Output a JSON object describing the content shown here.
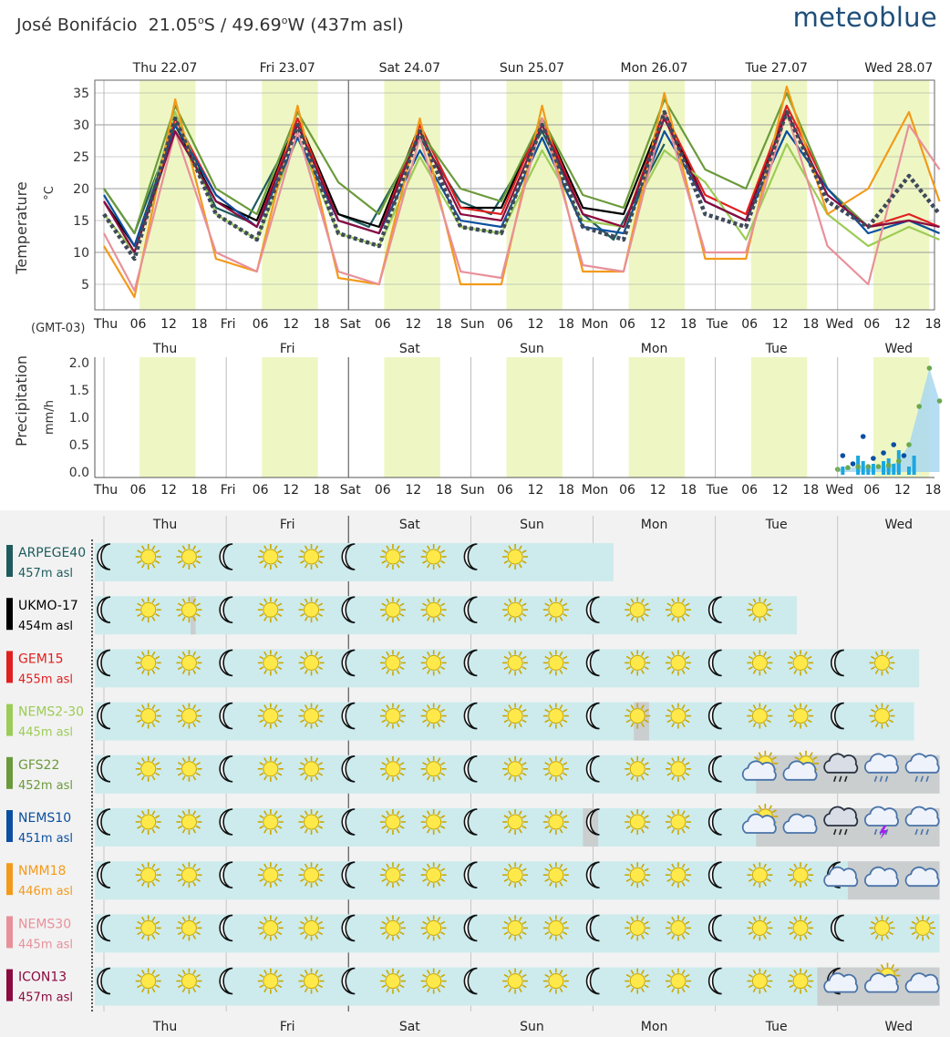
{
  "header": {
    "location": "José Bonifácio",
    "lat": "21.05",
    "lat_dir": "S",
    "lon": "49.69",
    "lon_dir": "W",
    "elevation": "(437m asl)",
    "brand": "meteoblue"
  },
  "timezone_label": "(GMT-03)",
  "day_dates": [
    "Thu 22.07",
    "Fri 23.07",
    "Sat 24.07",
    "Sun 25.07",
    "Mon 26.07",
    "Tue 27.07",
    "Wed 28.07"
  ],
  "day_names": [
    "Thu",
    "Fri",
    "Sat",
    "Sun",
    "Mon",
    "Tue",
    "Wed"
  ],
  "hour_ticks": [
    "06",
    "12",
    "18"
  ],
  "colors": {
    "ARPEGE40": "#1d5b5e",
    "UKMO-17": "#000000",
    "GEM15": "#e02020",
    "NEMS2-30": "#9ccc55",
    "GFS22": "#6a9a3a",
    "NEMS10": "#0b4fa0",
    "NMM18": "#f39a1a",
    "NEMS30": "#e8909a",
    "ICON13": "#8b0a40",
    "mean": "#3f4a5a",
    "daylight": "#eef7c4",
    "cyan_bar": "#cdebed",
    "precip_area": "#a9d8f0"
  },
  "chart_data": [
    {
      "type": "line",
      "title": "Temperature",
      "ylabel": "Temperature",
      "yunit": "°C",
      "ylim": [
        1,
        37
      ],
      "yticks": [
        5,
        10,
        15,
        20,
        25,
        30,
        35
      ],
      "x_unit": "hours from Thu 00:00 (local)",
      "xlim": [
        0,
        164
      ],
      "grid": true,
      "series": [
        {
          "name": "ARPEGE40",
          "x": [
            0,
            6,
            14,
            22,
            28,
            38,
            46,
            52,
            62,
            70,
            76,
            86,
            94,
            100,
            110
          ],
          "y": [
            20,
            13,
            30,
            17,
            15,
            30,
            16,
            14,
            28,
            18,
            16,
            29,
            16,
            12,
            27
          ]
        },
        {
          "name": "UKMO-17",
          "x": [
            0,
            6,
            14,
            22,
            30,
            38,
            46,
            54,
            62,
            70,
            78,
            86,
            94,
            102,
            110,
            118,
            126,
            134
          ],
          "y": [
            18,
            11,
            30,
            18,
            15,
            31,
            16,
            14,
            30,
            17,
            17,
            31,
            17,
            16,
            32,
            18,
            15,
            33
          ]
        },
        {
          "name": "GEM15",
          "x": [
            0,
            6,
            14,
            22,
            30,
            38,
            46,
            54,
            62,
            70,
            78,
            86,
            94,
            102,
            110,
            118,
            126,
            134,
            142,
            150,
            158,
            164
          ],
          "y": [
            18,
            10,
            31,
            19,
            14,
            31,
            15,
            13,
            30,
            17,
            16,
            31,
            16,
            14,
            32,
            19,
            16,
            33,
            20,
            14,
            16,
            14
          ]
        },
        {
          "name": "NEMS2-30",
          "x": [
            0,
            6,
            14,
            22,
            30,
            38,
            46,
            54,
            62,
            70,
            78,
            86,
            94,
            102,
            110,
            118,
            126,
            134,
            142,
            150,
            158,
            164
          ],
          "y": [
            16,
            10,
            32,
            16,
            12,
            28,
            13,
            11,
            25,
            14,
            13,
            26,
            15,
            14,
            26,
            21,
            12,
            27,
            16,
            11,
            14,
            12
          ]
        },
        {
          "name": "GFS22",
          "x": [
            0,
            6,
            14,
            22,
            30,
            38,
            46,
            54,
            62,
            70,
            78,
            86,
            94,
            102,
            110,
            118,
            126,
            134,
            142,
            150,
            158,
            164
          ],
          "y": [
            20,
            13,
            33,
            20,
            16,
            32,
            21,
            16,
            29,
            20,
            18,
            31,
            19,
            17,
            34,
            23,
            20,
            35,
            20,
            14,
            15,
            13
          ]
        },
        {
          "name": "NEMS10",
          "x": [
            0,
            6,
            14,
            22,
            30,
            38,
            46,
            54,
            62,
            70,
            78,
            86,
            94,
            102,
            110,
            118,
            126,
            134,
            142,
            150,
            158,
            164
          ],
          "y": [
            19,
            11,
            30,
            19,
            14,
            28,
            15,
            13,
            26,
            15,
            14,
            28,
            14,
            13,
            29,
            18,
            15,
            29,
            20,
            13,
            15,
            13
          ]
        },
        {
          "name": "NMM18",
          "x": [
            0,
            6,
            14,
            22,
            30,
            38,
            46,
            54,
            62,
            70,
            78,
            86,
            94,
            102,
            110,
            118,
            126,
            134,
            142,
            150,
            158,
            164
          ],
          "y": [
            11,
            3,
            34,
            9,
            7,
            33,
            6,
            5,
            31,
            5,
            5,
            33,
            7,
            7,
            35,
            9,
            9,
            36,
            16,
            20,
            32,
            18
          ]
        },
        {
          "name": "NEMS30",
          "x": [
            0,
            6,
            14,
            22,
            30,
            38,
            46,
            54,
            62,
            70,
            78,
            86,
            94,
            102,
            110,
            118,
            126,
            134,
            142,
            150,
            158,
            164
          ],
          "y": [
            13,
            4,
            29,
            10,
            7,
            29,
            7,
            5,
            28,
            7,
            6,
            31,
            8,
            7,
            32,
            10,
            10,
            32,
            11,
            5,
            30,
            23
          ]
        },
        {
          "name": "ICON13",
          "x": [
            0,
            6,
            14,
            22,
            30,
            38,
            46,
            54,
            62,
            70,
            78,
            86,
            94,
            102,
            110,
            118,
            126,
            134,
            142,
            150,
            158,
            164
          ],
          "y": [
            18,
            10,
            29,
            18,
            14,
            30,
            15,
            13,
            29,
            16,
            15,
            30,
            16,
            14,
            31,
            18,
            15,
            32,
            19,
            14,
            15,
            14
          ]
        },
        {
          "name": "mean",
          "x": [
            0,
            6,
            14,
            22,
            30,
            38,
            46,
            54,
            62,
            70,
            78,
            86,
            94,
            102,
            110,
            118,
            126,
            134,
            142,
            150,
            158,
            164
          ],
          "y": [
            16,
            9,
            31,
            16,
            12,
            30,
            13,
            11,
            29,
            14,
            13,
            30,
            14,
            12,
            32,
            16,
            14,
            32,
            18,
            14,
            22,
            16
          ]
        }
      ]
    },
    {
      "type": "bar",
      "title": "Precipitation",
      "ylabel": "Precipitation",
      "yunit": "mm/h",
      "ylim": [
        -0.1,
        2.1
      ],
      "yticks": [
        "0.0",
        "0.5",
        "1.0",
        "1.5",
        "2.0"
      ],
      "x_unit": "hours from Thu 00:00 (local)",
      "xlim": [
        0,
        164
      ],
      "series": [
        {
          "name": "bars",
          "x": [
            145,
            148,
            149,
            150,
            151,
            153,
            154,
            155,
            156,
            158,
            159
          ],
          "y": [
            0.1,
            0.3,
            0.2,
            0.1,
            0.15,
            0.2,
            0.25,
            0.15,
            0.4,
            0.1,
            0.3
          ]
        },
        {
          "name": "mean",
          "x": [
            144,
            146,
            148,
            150,
            152,
            154,
            156,
            158,
            160,
            162,
            164
          ],
          "y": [
            0.05,
            0.08,
            0.1,
            0.1,
            0.1,
            0.12,
            0.2,
            0.5,
            1.2,
            1.9,
            1.3
          ]
        },
        {
          "name": "NEMS10",
          "x": [
            145,
            147,
            149,
            151,
            153,
            155,
            157
          ],
          "y": [
            0.3,
            0.15,
            0.65,
            0.25,
            0.35,
            0.5,
            0.3
          ]
        }
      ]
    }
  ],
  "models": [
    {
      "name": "ARPEGE40",
      "elev": "457m asl",
      "color": "#1d5b5e",
      "end": 100,
      "icons": [
        "moon",
        "sun",
        "sun",
        "moon",
        "sun",
        "sun",
        "moon",
        "sun",
        "sun",
        "moon",
        "sun"
      ],
      "grey": []
    },
    {
      "name": "UKMO-17",
      "elev": "454m asl",
      "color": "#000000",
      "end": 136,
      "icons": [
        "moon",
        "sun",
        "sun",
        "moon",
        "sun",
        "sun",
        "moon",
        "sun",
        "sun",
        "moon",
        "sun",
        "sun",
        "moon",
        "sun",
        "sun",
        "moon",
        "sun"
      ],
      "grey": [
        [
          17,
          18
        ]
      ]
    },
    {
      "name": "GEM15",
      "elev": "455m asl",
      "color": "#e02020",
      "end": 160,
      "icons": [
        "moon",
        "sun",
        "sun",
        "moon",
        "sun",
        "sun",
        "moon",
        "sun",
        "sun",
        "moon",
        "sun",
        "sun",
        "moon",
        "sun",
        "sun",
        "moon",
        "sun",
        "sun",
        "moon",
        "sun"
      ],
      "grey": []
    },
    {
      "name": "NEMS2-30",
      "elev": "445m asl",
      "color": "#9ccc55",
      "end": 159,
      "icons": [
        "moon",
        "sun",
        "sun",
        "moon",
        "sun",
        "sun",
        "moon",
        "sun",
        "sun",
        "moon",
        "sun",
        "sun",
        "moon",
        "sun",
        "sun",
        "moon",
        "sun",
        "sun",
        "moon",
        "sun"
      ],
      "grey": [
        [
          104,
          107
        ]
      ]
    },
    {
      "name": "GFS22",
      "elev": "452m asl",
      "color": "#6a9a3a",
      "end": 164,
      "icons": [
        "moon",
        "sun",
        "sun",
        "moon",
        "sun",
        "sun",
        "moon",
        "sun",
        "sun",
        "moon",
        "sun",
        "sun",
        "moon",
        "sun",
        "sun",
        "moon",
        "cloudsun",
        "cloudsun",
        "raincloud",
        "rain",
        "rain"
      ],
      "grey": [
        [
          128,
          164
        ]
      ]
    },
    {
      "name": "NEMS10",
      "elev": "451m asl",
      "color": "#0b4fa0",
      "end": 164,
      "icons": [
        "moon",
        "sun",
        "sun",
        "moon",
        "sun",
        "sun",
        "moon",
        "sun",
        "sun",
        "moon",
        "sun",
        "sun",
        "moon",
        "sun",
        "sun",
        "moon",
        "cloudsun",
        "cloud",
        "raincloud",
        "storm",
        "rain"
      ],
      "grey": [
        [
          94,
          97
        ],
        [
          128,
          164
        ]
      ]
    },
    {
      "name": "NMM18",
      "elev": "446m asl",
      "color": "#f39a1a",
      "end": 164,
      "icons": [
        "moon",
        "sun",
        "sun",
        "moon",
        "sun",
        "sun",
        "moon",
        "sun",
        "sun",
        "moon",
        "sun",
        "sun",
        "moon",
        "sun",
        "sun",
        "moon",
        "sun",
        "sun",
        "cloudmoon",
        "cloud",
        "cloud"
      ],
      "grey": [
        [
          146,
          164
        ]
      ]
    },
    {
      "name": "NEMS30",
      "elev": "445m asl",
      "color": "#e8909a",
      "end": 164,
      "icons": [
        "moon",
        "sun",
        "sun",
        "moon",
        "sun",
        "sun",
        "moon",
        "sun",
        "sun",
        "moon",
        "sun",
        "sun",
        "moon",
        "sun",
        "sun",
        "moon",
        "sun",
        "sun",
        "moon",
        "sun",
        "sun"
      ],
      "grey": []
    },
    {
      "name": "ICON13",
      "elev": "457m asl",
      "color": "#8b0a40",
      "end": 164,
      "icons": [
        "moon",
        "sun",
        "sun",
        "moon",
        "sun",
        "sun",
        "moon",
        "sun",
        "sun",
        "moon",
        "sun",
        "sun",
        "moon",
        "sun",
        "sun",
        "moon",
        "sun",
        "sun",
        "cloudmoon",
        "cloudsun",
        "cloud"
      ],
      "grey": [
        [
          140,
          164
        ]
      ]
    }
  ]
}
